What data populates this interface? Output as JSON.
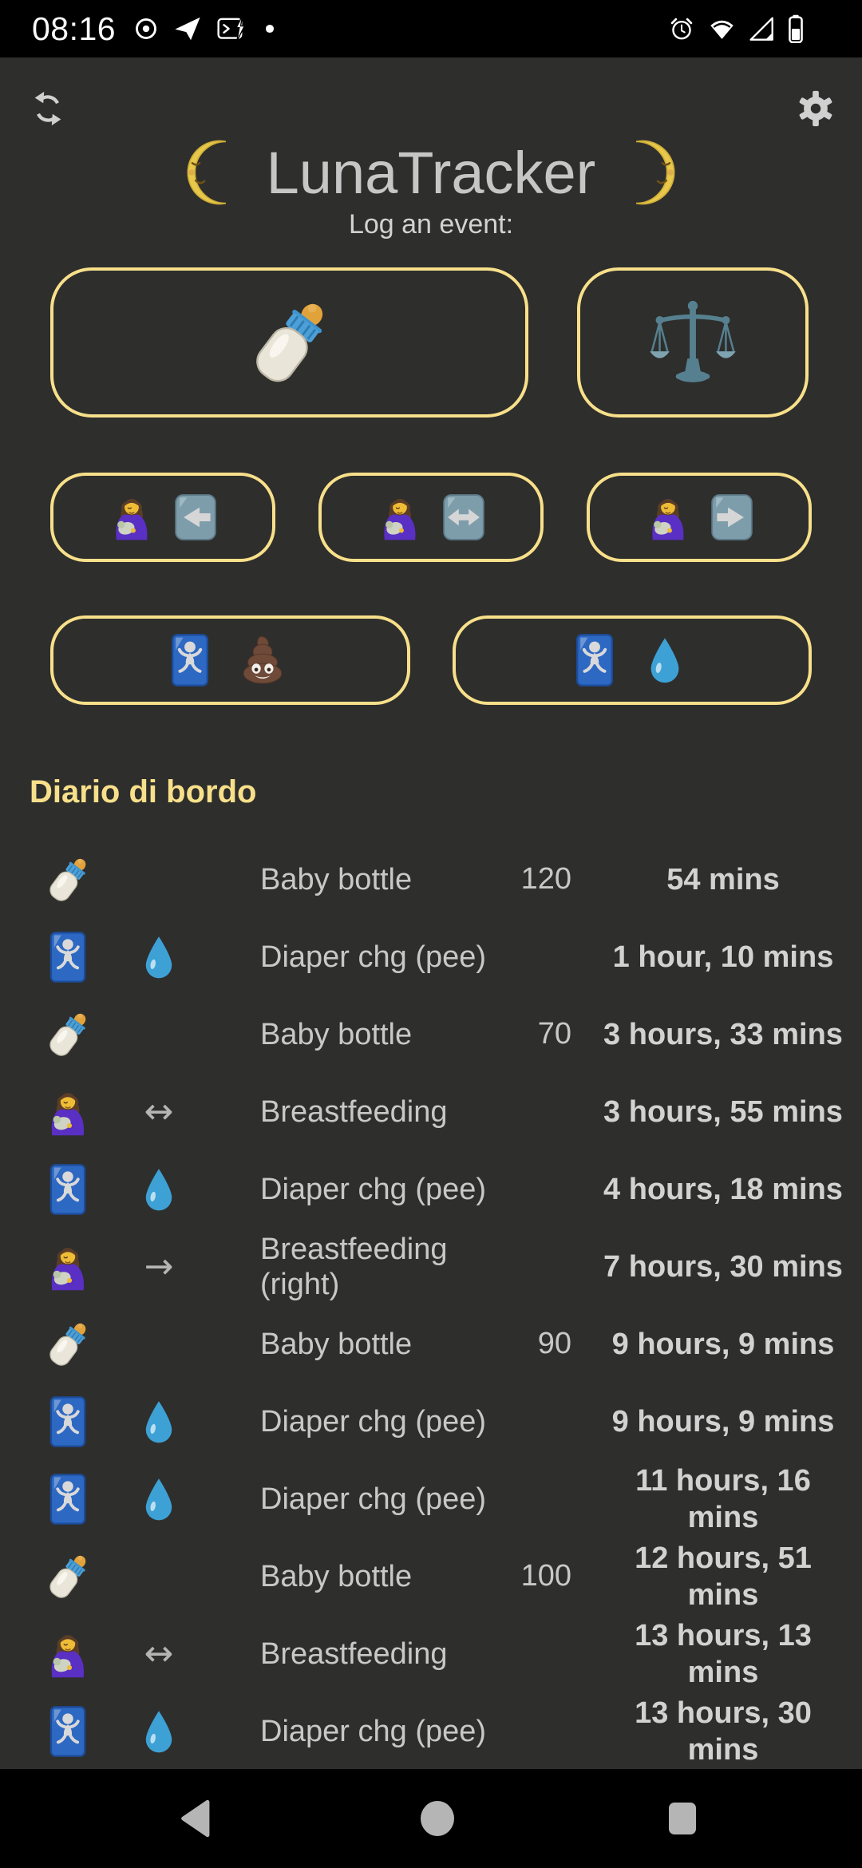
{
  "status_bar": {
    "time": "08:16",
    "left_icons": [
      "record-icon",
      "telegram-icon",
      "terminal-icon",
      "notification-dot-icon"
    ],
    "right_icons": [
      "alarm-icon",
      "wifi-icon",
      "cell-signal-icon",
      "battery-icon"
    ]
  },
  "header": {
    "title": "LunaTracker",
    "subtitle": "Log an event:",
    "moon_left_icon": "first-quarter-moon-face",
    "moon_right_icon": "last-quarter-moon-face"
  },
  "event_buttons": {
    "row1": [
      {
        "name": "log-bottle-button",
        "icons": [
          "baby-bottle"
        ]
      },
      {
        "name": "log-weight-button",
        "icons": [
          "balance-scale"
        ]
      }
    ],
    "row2": [
      {
        "name": "log-breastfeeding-left-button",
        "icons": [
          "breastfeeding",
          "arrow-left-key"
        ]
      },
      {
        "name": "log-breastfeeding-both-button",
        "icons": [
          "breastfeeding",
          "arrow-both-key"
        ]
      },
      {
        "name": "log-breastfeeding-right-button",
        "icons": [
          "breastfeeding",
          "arrow-right-key"
        ]
      }
    ],
    "row3": [
      {
        "name": "log-diaper-poo-button",
        "icons": [
          "baby-symbol",
          "poop"
        ]
      },
      {
        "name": "log-diaper-pee-button",
        "icons": [
          "baby-symbol",
          "droplet"
        ]
      }
    ]
  },
  "log": {
    "heading": "Diario di bordo",
    "arrow_glyphs": {
      "arrow-both": "↔",
      "arrow-right": "→"
    },
    "entries": [
      {
        "icon": "baby-bottle",
        "extra": "",
        "name": "Baby bottle",
        "qty": "120",
        "time": "54 mins"
      },
      {
        "icon": "baby-symbol",
        "extra": "droplet",
        "name": "Diaper chg (pee)",
        "qty": "",
        "time": "1 hour, 10 mins"
      },
      {
        "icon": "baby-bottle",
        "extra": "",
        "name": "Baby bottle",
        "qty": "70",
        "time": "3 hours, 33 mins"
      },
      {
        "icon": "breastfeeding",
        "extra": "arrow-both",
        "name": "Breastfeeding",
        "qty": "",
        "time": "3 hours, 55 mins"
      },
      {
        "icon": "baby-symbol",
        "extra": "droplet",
        "name": "Diaper chg (pee)",
        "qty": "",
        "time": "4 hours, 18 mins"
      },
      {
        "icon": "breastfeeding",
        "extra": "arrow-right",
        "name": "Breastfeeding (right)",
        "qty": "",
        "time": "7 hours, 30 mins"
      },
      {
        "icon": "baby-bottle",
        "extra": "",
        "name": "Baby bottle",
        "qty": "90",
        "time": "9 hours, 9 mins"
      },
      {
        "icon": "baby-symbol",
        "extra": "droplet",
        "name": "Diaper chg (pee)",
        "qty": "",
        "time": "9 hours, 9 mins"
      },
      {
        "icon": "baby-symbol",
        "extra": "droplet",
        "name": "Diaper chg (pee)",
        "qty": "",
        "time": "11 hours, 16 mins"
      },
      {
        "icon": "baby-bottle",
        "extra": "",
        "name": "Baby bottle",
        "qty": "100",
        "time": "12 hours, 51 mins"
      },
      {
        "icon": "breastfeeding",
        "extra": "arrow-both",
        "name": "Breastfeeding",
        "qty": "",
        "time": "13 hours, 13 mins"
      },
      {
        "icon": "baby-symbol",
        "extra": "droplet",
        "name": "Diaper chg (pee)",
        "qty": "",
        "time": "13 hours, 30 mins"
      }
    ]
  },
  "nav_bar": {
    "icons": [
      "back",
      "home",
      "recents"
    ]
  },
  "colors": {
    "accent_yellow": "#f8e08a",
    "background": "#2e2e2d",
    "bar_black": "#000000"
  }
}
